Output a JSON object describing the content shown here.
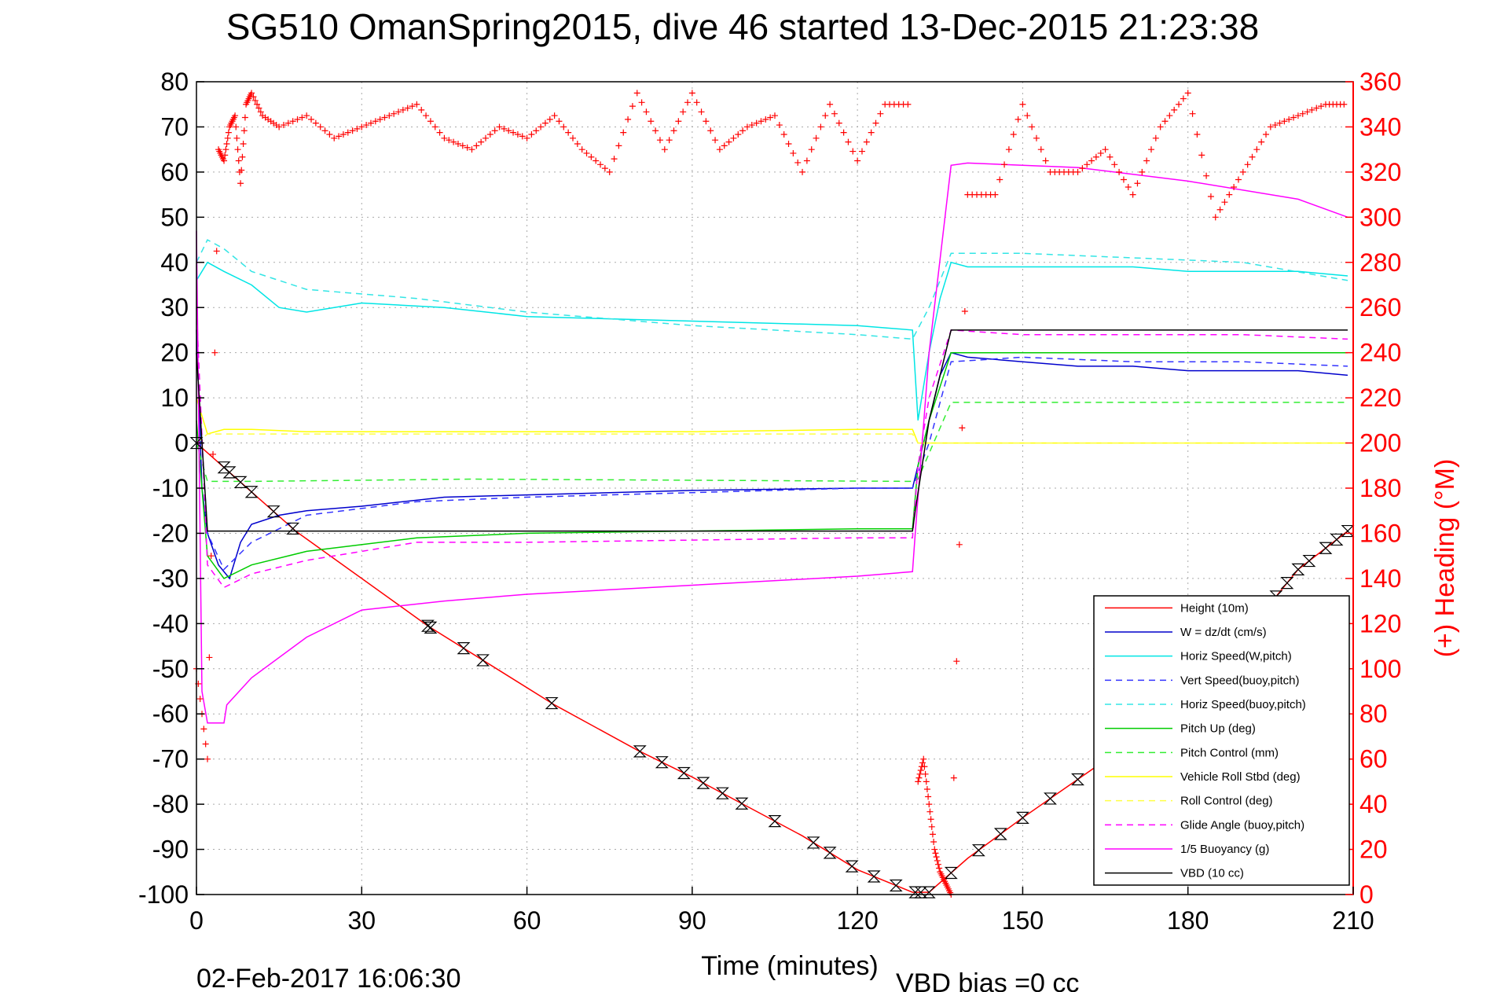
{
  "title": "SG510 OmanSpring2015, dive 46 started 13-Dec-2015 21:23:38",
  "footer_left": "02-Feb-2017 16:06:30",
  "footer_right": "VBD bias =0 cc",
  "chart_data": {
    "type": "line",
    "xlabel": "Time (minutes)",
    "ylabel_right": "(+) Heading (°M)",
    "xlim": [
      0,
      210
    ],
    "ylim": [
      -100,
      80
    ],
    "ylim_right": [
      0,
      360
    ],
    "xticks": [
      0,
      30,
      60,
      90,
      120,
      150,
      180,
      210
    ],
    "xtick_labels": [
      "0",
      "30",
      "60",
      "90",
      "120",
      "150",
      "180",
      "210"
    ],
    "yticks": [
      80,
      70,
      60,
      50,
      40,
      30,
      20,
      10,
      0,
      -10,
      -20,
      -30,
      -40,
      -50,
      -60,
      -70,
      -80,
      -90,
      -100
    ],
    "ytick_labels": [
      "80",
      "70",
      "60",
      "50",
      "40",
      "30",
      "20",
      "10",
      "0",
      "-10",
      "-20",
      "-30",
      "-40",
      "-50",
      "-60",
      "-70",
      "-80",
      "-90",
      "-100"
    ],
    "yticks_right": [
      360,
      340,
      320,
      300,
      280,
      260,
      240,
      220,
      200,
      180,
      160,
      140,
      120,
      100,
      80,
      60,
      40,
      20,
      0
    ],
    "ytick_labels_right": [
      "360",
      "340",
      "320",
      "300",
      "280",
      "260",
      "240",
      "220",
      "200",
      "180",
      "160",
      "140",
      "120",
      "100",
      "80",
      "60",
      "40",
      "20",
      "0"
    ],
    "grid": true,
    "legend_position": "bottom-right",
    "colors": {
      "axis": "#000000",
      "right_axis": "#ff0000",
      "grid": "#aaaaaa"
    },
    "series": [
      {
        "name": "Height (10m)",
        "color": "#ff0000",
        "dash": "solid",
        "x": [
          0,
          18,
          42,
          65,
          80,
          90,
          100,
          110,
          120,
          130,
          133,
          140,
          150,
          160,
          170,
          180,
          190,
          200,
          209
        ],
        "y": [
          0,
          -19.5,
          -40.5,
          -58,
          -68,
          -74,
          -80.5,
          -87,
          -94.5,
          -99.5,
          -99.5,
          -92,
          -83,
          -74.5,
          -66,
          -56,
          -43,
          -28,
          -19.5
        ]
      },
      {
        "name": "W = dz/dt (cm/s)",
        "color": "#0000cc",
        "dash": "solid",
        "x": [
          0,
          1,
          2,
          4,
          6,
          8,
          10,
          15,
          20,
          30,
          45,
          60,
          90,
          120,
          130,
          131,
          133,
          135,
          137,
          140,
          150,
          160,
          170,
          180,
          190,
          200,
          209
        ],
        "y": [
          25,
          -10,
          -20,
          -27,
          -30,
          -22,
          -18,
          -16,
          -15,
          -14,
          -12,
          -11.5,
          -10.5,
          -10,
          -10,
          -5,
          5,
          15,
          20,
          19,
          18,
          17,
          17,
          16,
          16,
          16,
          15
        ]
      },
      {
        "name": "Horiz Speed(W,pitch)",
        "color": "#00e5e5",
        "dash": "solid",
        "x": [
          0,
          2,
          5,
          10,
          15,
          20,
          30,
          45,
          60,
          90,
          120,
          130,
          131,
          133,
          135,
          137,
          140,
          150,
          160,
          170,
          180,
          190,
          200,
          209
        ],
        "y": [
          36,
          40,
          38,
          35,
          30,
          29,
          31,
          30,
          28,
          27,
          26,
          25,
          5,
          20,
          32,
          40,
          39,
          39,
          39,
          39,
          38,
          38,
          38,
          37
        ]
      },
      {
        "name": "Vert Speed(buoy,pitch)",
        "color": "#3333ff",
        "dash": "dashed",
        "x": [
          0,
          2,
          5,
          10,
          20,
          40,
          60,
          90,
          120,
          130,
          133,
          137,
          150,
          170,
          190,
          209
        ],
        "y": [
          20,
          -20,
          -28,
          -22,
          -16,
          -13,
          -12,
          -11,
          -10,
          -10,
          0,
          18,
          19,
          18,
          18,
          17
        ]
      },
      {
        "name": "Horiz Speed(buoy,pitch)",
        "color": "#33e5e5",
        "dash": "dashed",
        "x": [
          0,
          2,
          5,
          10,
          20,
          40,
          60,
          90,
          120,
          130,
          133,
          137,
          150,
          170,
          190,
          209
        ],
        "y": [
          40,
          45,
          43,
          38,
          34,
          32,
          29,
          26,
          24,
          23,
          30,
          42,
          42,
          41,
          40,
          36
        ]
      },
      {
        "name": "Pitch Up (deg)",
        "color": "#00cc00",
        "dash": "solid",
        "x": [
          0,
          2,
          5,
          10,
          20,
          40,
          60,
          90,
          120,
          130,
          131,
          133,
          137,
          150,
          170,
          190,
          209
        ],
        "y": [
          5,
          -25,
          -30,
          -27,
          -24,
          -21,
          -20,
          -19.5,
          -19,
          -19,
          -5,
          5,
          20,
          20,
          20,
          20,
          20
        ]
      },
      {
        "name": "Pitch Control (mm)",
        "color": "#33ee33",
        "dash": "dashed",
        "x": [
          0,
          2,
          10,
          50,
          130,
          131,
          137,
          209
        ],
        "y": [
          0,
          -8.5,
          -8.5,
          -8,
          -8.5,
          -8,
          9,
          9
        ]
      },
      {
        "name": "Vehicle Roll Stbd (deg)",
        "color": "#ffff00",
        "dash": "solid",
        "x": [
          0,
          2,
          5,
          10,
          20,
          45,
          60,
          90,
          120,
          130,
          131,
          137,
          150,
          170,
          190,
          209
        ],
        "y": [
          10,
          2,
          3,
          3,
          2.5,
          2.5,
          2.5,
          2.5,
          3,
          3,
          0,
          0,
          0,
          0,
          0,
          0
        ]
      },
      {
        "name": "Roll Control (deg)",
        "color": "#ffff44",
        "dash": "dashed",
        "x": [
          0,
          2,
          10,
          130,
          131,
          209
        ],
        "y": [
          0,
          2,
          2,
          2,
          0,
          0
        ]
      },
      {
        "name": "Glide Angle (buoy,pitch)",
        "color": "#ff00ff",
        "dash": "dashed",
        "x": [
          0,
          2,
          5,
          10,
          20,
          40,
          60,
          90,
          120,
          130,
          131,
          133,
          137,
          150,
          170,
          190,
          209
        ],
        "y": [
          30,
          -27,
          -32,
          -29,
          -26,
          -22,
          -22,
          -21.5,
          -21,
          -21,
          -5,
          10,
          25,
          24,
          24,
          24,
          23
        ]
      },
      {
        "name": "1/5 Buoyancy (g)",
        "color": "#ff00ff",
        "dash": "solid",
        "x": [
          0,
          1,
          2,
          5,
          5.5,
          10,
          20,
          30,
          45,
          60,
          90,
          120,
          130,
          130.5,
          133,
          137,
          140,
          160,
          180,
          200,
          209
        ],
        "y": [
          47,
          -55,
          -62,
          -62,
          -58,
          -52,
          -43,
          -37,
          -35,
          -33.5,
          -31.5,
          -29.5,
          -28.5,
          -20,
          20,
          61.5,
          62,
          61,
          58,
          54,
          50
        ]
      },
      {
        "name": "VBD (10 cc)",
        "color": "#000000",
        "dash": "solid",
        "x": [
          0,
          2,
          10,
          130,
          130.5,
          133,
          137,
          209
        ],
        "y": [
          20,
          -19.5,
          -19.5,
          -19.5,
          -15,
          5,
          25,
          25
        ]
      }
    ],
    "markers_x": [
      0,
      5,
      6,
      8,
      10,
      14,
      17.5,
      42,
      42.5,
      48.5,
      52,
      64.5,
      80.5,
      84.5,
      88.5,
      92,
      95.5,
      99,
      105,
      112,
      115,
      119,
      123,
      127,
      130.5,
      131.5,
      133,
      137,
      142,
      146,
      150,
      155,
      160,
      165,
      170,
      175,
      180,
      190,
      196,
      198,
      200,
      202,
      205,
      207,
      209
    ],
    "heading_deg": [
      {
        "x": [
          0,
          2,
          4,
          5,
          6,
          7,
          8,
          9,
          10,
          12,
          15,
          20,
          25,
          30,
          35,
          40,
          45,
          50,
          55,
          60,
          65,
          70,
          75,
          80,
          85,
          90,
          95,
          100,
          105,
          110,
          115,
          120,
          125,
          130
        ],
        "y": [
          100,
          60,
          330,
          325,
          340,
          345,
          315,
          350,
          355,
          345,
          340,
          345,
          335,
          340,
          345,
          350,
          335,
          330,
          340,
          335,
          345,
          330,
          320,
          355,
          330,
          355,
          330,
          340,
          345,
          320,
          350,
          325,
          350,
          350
        ]
      },
      {
        "x": [
          131,
          132,
          133,
          134,
          135,
          136,
          137,
          140,
          145,
          150,
          155,
          160,
          165,
          170,
          175,
          180,
          185,
          190,
          195,
          200,
          205,
          209
        ],
        "y": [
          50,
          60,
          40,
          20,
          10,
          5,
          0,
          310,
          310,
          350,
          320,
          320,
          330,
          310,
          340,
          355,
          300,
          320,
          340,
          345,
          350,
          350
        ]
      }
    ]
  }
}
